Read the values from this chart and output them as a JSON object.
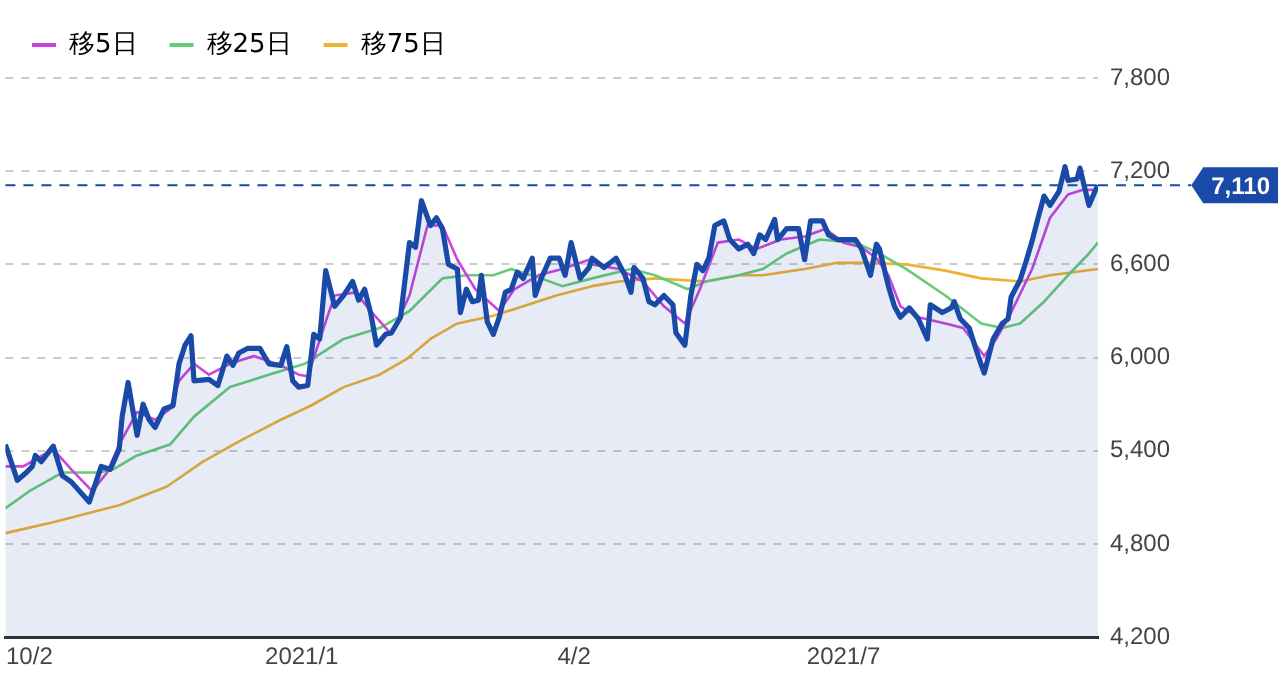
{
  "chart_data": {
    "type": "line",
    "legend": "top left",
    "grid": "y",
    "marker": "none",
    "line_style": "solid",
    "xlim": [
      "2020-09-24",
      "2021-09-24"
    ],
    "xticks": [
      {
        "value": "2020-10-02",
        "label": "10/2"
      },
      {
        "value": "2021-01",
        "label": "2021/1"
      },
      {
        "value": "2021-04-02",
        "label": "4/2"
      },
      {
        "value": "2021-07",
        "label": "2021/7"
      }
    ],
    "ylim": [
      4200,
      7800
    ],
    "yticks": [
      {
        "value": 4200,
        "label": "4,200"
      },
      {
        "value": 4800,
        "label": "4,800"
      },
      {
        "value": 5400,
        "label": "5,400"
      },
      {
        "value": 6000,
        "label": "6,000"
      },
      {
        "value": 6600,
        "label": "6,600"
      },
      {
        "value": 7200,
        "label": "7,200"
      },
      {
        "value": 7800,
        "label": "7,800"
      }
    ],
    "ref_lines": [
      {
        "axis": "y",
        "value": 7110,
        "label": "7,110",
        "color": "#1a4aa8",
        "line_style": "dashed"
      }
    ],
    "series": [
      {
        "type": "area",
        "color": "#1a4aa8",
        "x": [
          "2020-09-24",
          "2020-09-28",
          "2020-10-01",
          "2020-10-03",
          "2020-10-04",
          "2020-10-06",
          "2020-10-10",
          "2020-10-13",
          "2020-10-16",
          "2020-10-22",
          "2020-10-26",
          "2020-10-29",
          "2020-11-01",
          "2020-11-02",
          "2020-11-04",
          "2020-11-07",
          "2020-11-09",
          "2020-11-11",
          "2020-11-13",
          "2020-11-16",
          "2020-11-19",
          "2020-11-21",
          "2020-11-23",
          "2020-11-25",
          "2020-11-26",
          "2020-12-01",
          "2020-12-04",
          "2020-12-07",
          "2020-12-09",
          "2020-12-11",
          "2020-12-14",
          "2020-12-18",
          "2020-12-21",
          "2020-12-25",
          "2020-12-27",
          "2020-12-29",
          "2020-12-31",
          "2021-01-03",
          "2021-01-05",
          "2021-01-07",
          "2021-01-09",
          "2021-01-12",
          "2021-01-15",
          "2021-01-18",
          "2021-01-20",
          "2021-01-22",
          "2021-01-24",
          "2021-01-26",
          "2021-01-29",
          "2021-01-31",
          "2021-02-03",
          "2021-02-06",
          "2021-02-08",
          "2021-02-10",
          "2021-02-13",
          "2021-02-15",
          "2021-02-17",
          "2021-02-19",
          "2021-02-22",
          "2021-02-23",
          "2021-02-25",
          "2021-02-27",
          "2021-03-01",
          "2021-03-02",
          "2021-03-04",
          "2021-03-06",
          "2021-03-08",
          "2021-03-10",
          "2021-03-12",
          "2021-03-14",
          "2021-03-16",
          "2021-03-19",
          "2021-03-20",
          "2021-03-22",
          "2021-03-25",
          "2021-03-28",
          "2021-03-30",
          "2021-04-01",
          "2021-04-04",
          "2021-04-07",
          "2021-04-08",
          "2021-04-12",
          "2021-04-16",
          "2021-04-19",
          "2021-04-21",
          "2021-04-22",
          "2021-04-25",
          "2021-04-27",
          "2021-04-29",
          "2021-05-02",
          "2021-05-05",
          "2021-05-06",
          "2021-05-09",
          "2021-05-11",
          "2021-05-13",
          "2021-05-15",
          "2021-05-17",
          "2021-05-19",
          "2021-05-22",
          "2021-05-24",
          "2021-05-27",
          "2021-05-30",
          "2021-06-01",
          "2021-06-03",
          "2021-06-05",
          "2021-06-08",
          "2021-06-09",
          "2021-06-12",
          "2021-06-16",
          "2021-06-18",
          "2021-06-20",
          "2021-06-24",
          "2021-06-26",
          "2021-06-29",
          "2021-07-05",
          "2021-07-07",
          "2021-07-10",
          "2021-07-12",
          "2021-07-13",
          "2021-07-16",
          "2021-07-18",
          "2021-07-20",
          "2021-07-23",
          "2021-07-26",
          "2021-07-29",
          "2021-07-30",
          "2021-08-03",
          "2021-08-06",
          "2021-08-07",
          "2021-08-09",
          "2021-08-12",
          "2021-08-15",
          "2021-08-17",
          "2021-08-20",
          "2021-08-23",
          "2021-08-25",
          "2021-08-26",
          "2021-08-29",
          "2021-08-31",
          "2021-09-02",
          "2021-09-04",
          "2021-09-06",
          "2021-09-08",
          "2021-09-11",
          "2021-09-13",
          "2021-09-14",
          "2021-09-17",
          "2021-09-18",
          "2021-09-19",
          "2021-09-21",
          "2021-09-23",
          "2021-09-24"
        ],
        "values": [
          5440,
          5210,
          5260,
          5300,
          5370,
          5330,
          5430,
          5240,
          5200,
          5070,
          5300,
          5280,
          5410,
          5620,
          5840,
          5500,
          5700,
          5600,
          5550,
          5670,
          5690,
          5960,
          6080,
          6140,
          5850,
          5860,
          5820,
          6010,
          5950,
          6030,
          6060,
          6060,
          5960,
          5950,
          6070,
          5850,
          5810,
          5820,
          6150,
          6120,
          6560,
          6330,
          6400,
          6490,
          6370,
          6440,
          6290,
          6080,
          6150,
          6160,
          6260,
          6740,
          6710,
          7010,
          6850,
          6900,
          6830,
          6600,
          6570,
          6290,
          6440,
          6360,
          6370,
          6530,
          6230,
          6150,
          6260,
          6420,
          6440,
          6550,
          6510,
          6640,
          6400,
          6510,
          6640,
          6640,
          6530,
          6740,
          6510,
          6580,
          6640,
          6580,
          6640,
          6530,
          6420,
          6580,
          6510,
          6360,
          6340,
          6400,
          6340,
          6160,
          6080,
          6400,
          6600,
          6560,
          6640,
          6850,
          6880,
          6760,
          6700,
          6730,
          6670,
          6790,
          6760,
          6890,
          6760,
          6830,
          6830,
          6630,
          6880,
          6880,
          6790,
          6760,
          6760,
          6700,
          6530,
          6730,
          6700,
          6460,
          6330,
          6260,
          6320,
          6250,
          6120,
          6340,
          6290,
          6320,
          6360,
          6250,
          6190,
          6010,
          5900,
          6120,
          6220,
          6250,
          6390,
          6500,
          6620,
          6750,
          6900,
          7040,
          6980,
          7070,
          7230,
          7140,
          7150,
          7220,
          7140,
          6980,
          7070,
          7110
        ]
      },
      {
        "name": "移5日",
        "color": "#cc44dd",
        "x": [
          "2020-09-24",
          "2020-09-30",
          "2020-10-10",
          "2020-10-16",
          "2020-10-23",
          "2020-10-28",
          "2020-11-01",
          "2020-11-07",
          "2020-11-13",
          "2020-11-18",
          "2020-11-21",
          "2020-11-26",
          "2020-12-01",
          "2020-12-08",
          "2020-12-16",
          "2020-12-25",
          "2020-12-31",
          "2021-01-03",
          "2021-01-09",
          "2021-01-12",
          "2021-01-19",
          "2021-01-24",
          "2021-01-31",
          "2021-02-06",
          "2021-02-12",
          "2021-02-17",
          "2021-02-22",
          "2021-02-28",
          "2021-03-08",
          "2021-03-13",
          "2021-03-21",
          "2021-03-29",
          "2021-04-07",
          "2021-04-08",
          "2021-04-17",
          "2021-04-25",
          "2021-05-02",
          "2021-05-09",
          "2021-05-14",
          "2021-05-20",
          "2021-05-27",
          "2021-06-02",
          "2021-06-10",
          "2021-06-18",
          "2021-06-25",
          "2021-07-01",
          "2021-07-07",
          "2021-07-12",
          "2021-07-16",
          "2021-07-20",
          "2021-07-26",
          "2021-08-04",
          "2021-08-10",
          "2021-08-17",
          "2021-08-21",
          "2021-08-26",
          "2021-09-02",
          "2021-09-08",
          "2021-09-14",
          "2021-09-19",
          "2021-09-24"
        ],
        "values": [
          5300,
          5300,
          5410,
          5280,
          5140,
          5260,
          5440,
          5650,
          5600,
          5670,
          5850,
          5960,
          5890,
          5960,
          6010,
          5950,
          5890,
          5880,
          6230,
          6400,
          6420,
          6300,
          6150,
          6400,
          6850,
          6850,
          6630,
          6440,
          6300,
          6440,
          6530,
          6570,
          6630,
          6600,
          6570,
          6490,
          6330,
          6220,
          6440,
          6740,
          6760,
          6700,
          6760,
          6780,
          6830,
          6740,
          6710,
          6640,
          6530,
          6330,
          6260,
          6220,
          6190,
          6010,
          6120,
          6290,
          6570,
          6900,
          7050,
          7080,
          7080
        ]
      },
      {
        "name": "移25日",
        "color": "#66cc77",
        "x": [
          "2020-09-24",
          "2020-10-02",
          "2020-10-13",
          "2020-10-25",
          "2020-10-30",
          "2020-11-07",
          "2020-11-18",
          "2020-11-26",
          "2020-12-08",
          "2020-12-21",
          "2021-01-02",
          "2021-01-15",
          "2021-01-27",
          "2021-02-06",
          "2021-02-17",
          "2021-02-25",
          "2021-03-06",
          "2021-03-12",
          "2021-03-22",
          "2021-03-29",
          "2021-04-08",
          "2021-04-21",
          "2021-04-29",
          "2021-05-10",
          "2021-05-16",
          "2021-05-27",
          "2021-06-04",
          "2021-06-12",
          "2021-06-23",
          "2021-07-05",
          "2021-07-13",
          "2021-07-22",
          "2021-08-04",
          "2021-08-16",
          "2021-08-23",
          "2021-08-29",
          "2021-09-06",
          "2021-09-14",
          "2021-09-21",
          "2021-09-24"
        ],
        "values": [
          5030,
          5140,
          5260,
          5260,
          5280,
          5370,
          5440,
          5620,
          5810,
          5890,
          5960,
          6120,
          6190,
          6300,
          6510,
          6530,
          6530,
          6570,
          6510,
          6460,
          6510,
          6570,
          6530,
          6440,
          6490,
          6530,
          6570,
          6670,
          6760,
          6740,
          6670,
          6570,
          6400,
          6220,
          6190,
          6220,
          6360,
          6530,
          6670,
          6740
        ]
      },
      {
        "name": "移75日",
        "color": "#f0b030",
        "x": [
          "2020-09-24",
          "2020-10-10",
          "2020-11-01",
          "2020-11-17",
          "2020-11-29",
          "2020-12-12",
          "2020-12-25",
          "2021-01-04",
          "2021-01-15",
          "2021-01-27",
          "2021-02-05",
          "2021-02-13",
          "2021-02-22",
          "2021-03-06",
          "2021-03-16",
          "2021-03-27",
          "2021-04-08",
          "2021-04-17",
          "2021-04-29",
          "2021-05-16",
          "2021-05-27",
          "2021-06-04",
          "2021-06-18",
          "2021-06-29",
          "2021-07-10",
          "2021-07-22",
          "2021-08-04",
          "2021-08-16",
          "2021-08-29",
          "2021-09-08",
          "2021-09-24"
        ],
        "values": [
          4870,
          4940,
          5050,
          5170,
          5330,
          5470,
          5600,
          5690,
          5810,
          5890,
          5990,
          6120,
          6220,
          6270,
          6330,
          6400,
          6460,
          6490,
          6510,
          6490,
          6530,
          6530,
          6570,
          6610,
          6610,
          6600,
          6560,
          6510,
          6490,
          6530,
          6570
        ]
      }
    ]
  }
}
